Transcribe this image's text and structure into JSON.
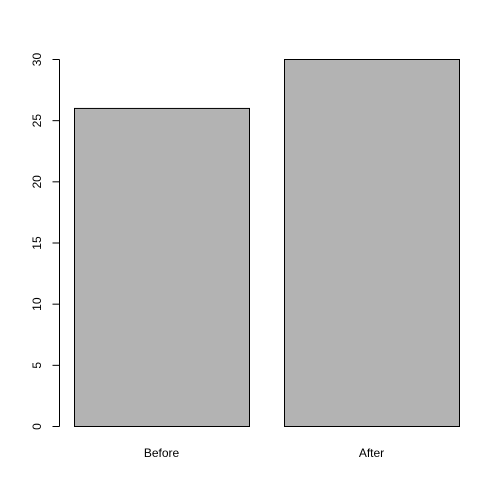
{
  "chart_data": {
    "type": "bar",
    "categories": [
      "Before",
      "After"
    ],
    "values": [
      26,
      30
    ],
    "title": "",
    "xlabel": "",
    "ylabel": "",
    "ylim": [
      0,
      30
    ],
    "yticks": [
      0,
      5,
      10,
      15,
      20,
      25,
      30
    ],
    "ytick_labels": [
      "0",
      "5",
      "10",
      "15",
      "20",
      "25",
      "30"
    ],
    "grid": false,
    "legend": "none",
    "bar_color": "#b3b3b3",
    "border_color": "#000000"
  }
}
